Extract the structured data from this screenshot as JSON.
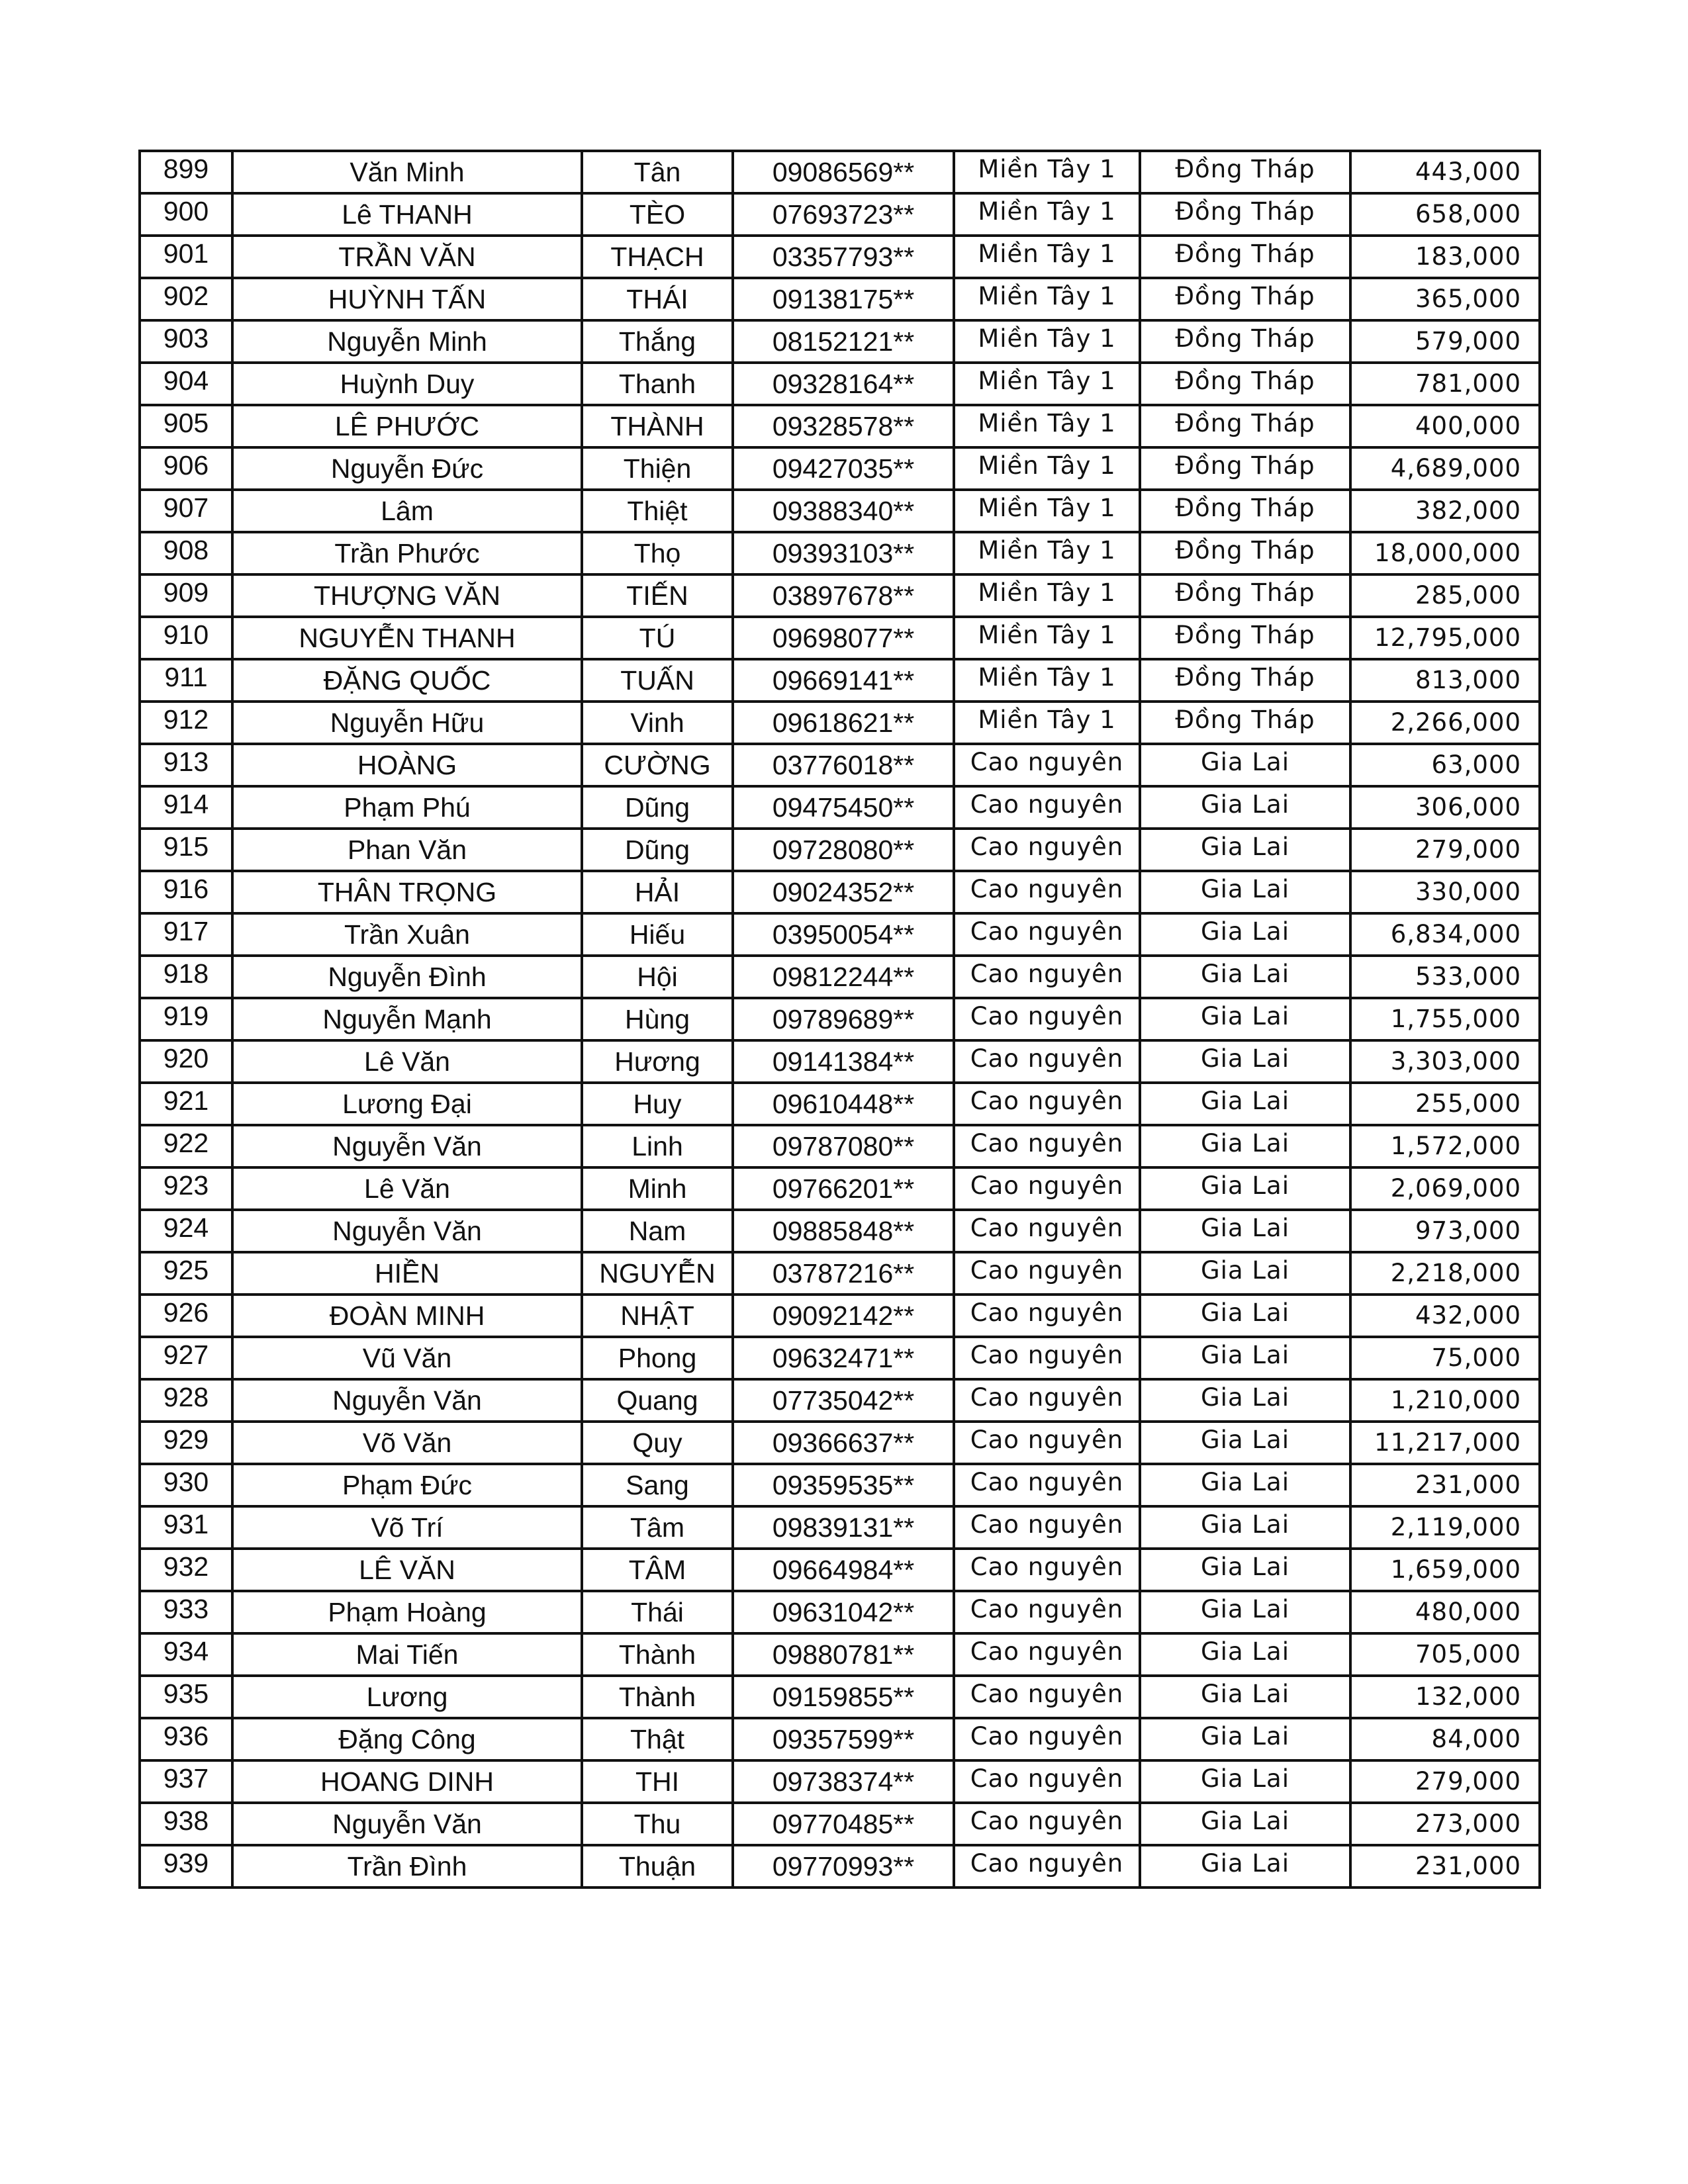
{
  "table": {
    "rows": [
      [
        "899",
        "Văn Minh",
        "Tân",
        "09086569**",
        "Miền Tây 1",
        "Đồng Tháp",
        "443,000"
      ],
      [
        "900",
        "Lê THANH",
        "TÈO",
        "07693723**",
        "Miền Tây 1",
        "Đồng Tháp",
        "658,000"
      ],
      [
        "901",
        "TRẦN VĂN",
        "THẠCH",
        "03357793**",
        "Miền Tây 1",
        "Đồng Tháp",
        "183,000"
      ],
      [
        "902",
        "HUỲNH TẤN",
        "THÁI",
        "09138175**",
        "Miền Tây 1",
        "Đồng Tháp",
        "365,000"
      ],
      [
        "903",
        "Nguyễn Minh",
        "Thắng",
        "08152121**",
        "Miền Tây 1",
        "Đồng Tháp",
        "579,000"
      ],
      [
        "904",
        "Huỳnh Duy",
        "Thanh",
        "09328164**",
        "Miền Tây 1",
        "Đồng Tháp",
        "781,000"
      ],
      [
        "905",
        "LÊ PHƯỚC",
        "THÀNH",
        "09328578**",
        "Miền Tây 1",
        "Đồng Tháp",
        "400,000"
      ],
      [
        "906",
        "Nguyễn Đức",
        "Thiện",
        "09427035**",
        "Miền Tây 1",
        "Đồng Tháp",
        "4,689,000"
      ],
      [
        "907",
        "Lâm",
        "Thiệt",
        "09388340**",
        "Miền Tây 1",
        "Đồng Tháp",
        "382,000"
      ],
      [
        "908",
        "Trần Phước",
        "Thọ",
        "09393103**",
        "Miền Tây 1",
        "Đồng Tháp",
        "18,000,000"
      ],
      [
        "909",
        "THƯỢNG VĂN",
        "TIẾN",
        "03897678**",
        "Miền Tây 1",
        "Đồng Tháp",
        "285,000"
      ],
      [
        "910",
        "NGUYỄN THANH",
        "TÚ",
        "09698077**",
        "Miền Tây 1",
        "Đồng Tháp",
        "12,795,000"
      ],
      [
        "911",
        "ĐẶNG QUỐC",
        "TUẤN",
        "09669141**",
        "Miền Tây 1",
        "Đồng Tháp",
        "813,000"
      ],
      [
        "912",
        "Nguyễn Hữu",
        "Vinh",
        "09618621**",
        "Miền Tây 1",
        "Đồng Tháp",
        "2,266,000"
      ],
      [
        "913",
        "HOÀNG",
        "CƯỜNG",
        "03776018**",
        "Cao nguyên",
        "Gia Lai",
        "63,000"
      ],
      [
        "914",
        "Phạm Phú",
        "Dũng",
        "09475450**",
        "Cao nguyên",
        "Gia Lai",
        "306,000"
      ],
      [
        "915",
        "Phan Văn",
        "Dũng",
        "09728080**",
        "Cao nguyên",
        "Gia Lai",
        "279,000"
      ],
      [
        "916",
        "THÂN TRỌNG",
        "HẢI",
        "09024352**",
        "Cao nguyên",
        "Gia Lai",
        "330,000"
      ],
      [
        "917",
        "Trần Xuân",
        "Hiếu",
        "03950054**",
        "Cao nguyên",
        "Gia Lai",
        "6,834,000"
      ],
      [
        "918",
        "Nguyễn Đình",
        "Hội",
        "09812244**",
        "Cao nguyên",
        "Gia Lai",
        "533,000"
      ],
      [
        "919",
        "Nguyễn Mạnh",
        "Hùng",
        "09789689**",
        "Cao nguyên",
        "Gia Lai",
        "1,755,000"
      ],
      [
        "920",
        "Lê Văn",
        "Hương",
        "09141384**",
        "Cao nguyên",
        "Gia Lai",
        "3,303,000"
      ],
      [
        "921",
        "Lương Đại",
        "Huy",
        "09610448**",
        "Cao nguyên",
        "Gia Lai",
        "255,000"
      ],
      [
        "922",
        "Nguyễn Văn",
        "Linh",
        "09787080**",
        "Cao nguyên",
        "Gia Lai",
        "1,572,000"
      ],
      [
        "923",
        "Lê Văn",
        "Minh",
        "09766201**",
        "Cao nguyên",
        "Gia Lai",
        "2,069,000"
      ],
      [
        "924",
        "Nguyễn Văn",
        "Nam",
        "09885848**",
        "Cao nguyên",
        "Gia Lai",
        "973,000"
      ],
      [
        "925",
        "HIỀN",
        "NGUYỄN",
        "03787216**",
        "Cao nguyên",
        "Gia Lai",
        "2,218,000"
      ],
      [
        "926",
        "ĐOÀN MINH",
        "NHẬT",
        "09092142**",
        "Cao nguyên",
        "Gia Lai",
        "432,000"
      ],
      [
        "927",
        "Vũ Văn",
        "Phong",
        "09632471**",
        "Cao nguyên",
        "Gia Lai",
        "75,000"
      ],
      [
        "928",
        "Nguyễn Văn",
        "Quang",
        "07735042**",
        "Cao nguyên",
        "Gia Lai",
        "1,210,000"
      ],
      [
        "929",
        "Võ Văn",
        "Quy",
        "09366637**",
        "Cao nguyên",
        "Gia Lai",
        "11,217,000"
      ],
      [
        "930",
        "Phạm Đức",
        "Sang",
        "09359535**",
        "Cao nguyên",
        "Gia Lai",
        "231,000"
      ],
      [
        "931",
        "Võ Trí",
        "Tâm",
        "09839131**",
        "Cao nguyên",
        "Gia Lai",
        "2,119,000"
      ],
      [
        "932",
        "LÊ VĂN",
        "TÂM",
        "09664984**",
        "Cao nguyên",
        "Gia Lai",
        "1,659,000"
      ],
      [
        "933",
        "Phạm Hoàng",
        "Thái",
        "09631042**",
        "Cao nguyên",
        "Gia Lai",
        "480,000"
      ],
      [
        "934",
        "Mai Tiến",
        "Thành",
        "09880781**",
        "Cao nguyên",
        "Gia Lai",
        "705,000"
      ],
      [
        "935",
        "Lương",
        "Thành",
        "09159855**",
        "Cao nguyên",
        "Gia Lai",
        "132,000"
      ],
      [
        "936",
        "Đặng Công",
        "Thật",
        "09357599**",
        "Cao nguyên",
        "Gia Lai",
        "84,000"
      ],
      [
        "937",
        "HOANG DINH",
        "THI",
        "09738374**",
        "Cao nguyên",
        "Gia Lai",
        "279,000"
      ],
      [
        "938",
        "Nguyễn Văn",
        "Thu",
        "09770485**",
        "Cao nguyên",
        "Gia Lai",
        "273,000"
      ],
      [
        "939",
        "Trần Đình",
        "Thuận",
        "09770993**",
        "Cao nguyên",
        "Gia Lai",
        "231,000"
      ]
    ]
  }
}
